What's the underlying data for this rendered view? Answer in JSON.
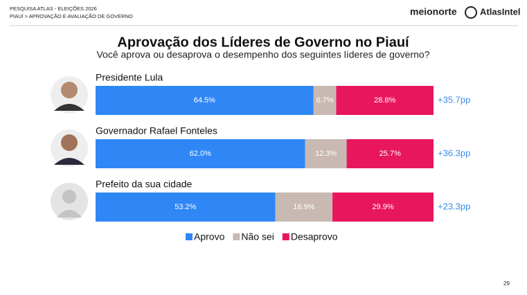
{
  "header": {
    "survey": "PESQUISA ATLAS - ELEIÇÕES 2026",
    "section": "PIAUÍ > APROVAÇÃO E AVALIAÇÃO DE GOVERNO",
    "brand_left": "meionorte",
    "brand_right": "AtlasIntel"
  },
  "chart_data": {
    "type": "stacked-bar-horizontal",
    "title": "Aprovação dos Líderes de Governo no Piauí",
    "subtitle": "Você aprova ou desaprova o desempenho dos seguintes líderes de governo?",
    "categories": [
      "Presidente Lula",
      "Governador Rafael Fonteles",
      "Prefeito da sua cidade"
    ],
    "xlim": [
      0,
      100
    ],
    "series": [
      {
        "name": "Aprovo",
        "color": "#2f87f5",
        "values": [
          64.5,
          62.0,
          53.2
        ],
        "value_labels": [
          "64.5%",
          "62.0%",
          "53.2%"
        ]
      },
      {
        "name": "Não sei",
        "color": "#c8bab2",
        "values": [
          6.7,
          12.3,
          16.9
        ],
        "value_labels": [
          "6.7%",
          "12.3%",
          "16.9%"
        ]
      },
      {
        "name": "Desaprovo",
        "color": "#e8175d",
        "values": [
          28.8,
          25.7,
          29.9
        ],
        "value_labels": [
          "28.8%",
          "25.7%",
          "29.9%"
        ]
      }
    ],
    "net": {
      "color": "#3a8be8",
      "values": [
        35.7,
        36.3,
        23.3
      ],
      "value_labels": [
        "+35.7pp",
        "+36.3pp",
        "+23.3pp"
      ]
    },
    "legend": "bottom"
  },
  "page_number": "29"
}
